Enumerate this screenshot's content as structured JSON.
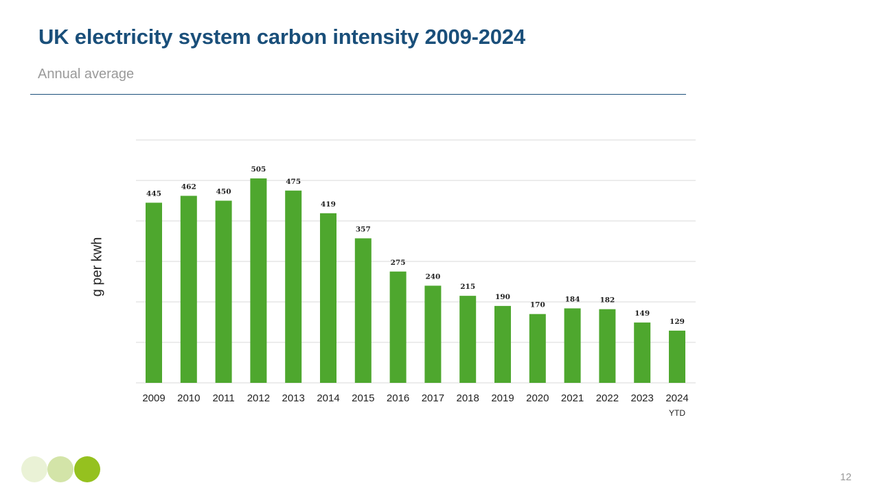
{
  "slide": {
    "title": "UK electricity system carbon intensity 2009-2024",
    "subtitle": "Annual average",
    "page_number": "12"
  },
  "colors": {
    "title": "#1a4f7a",
    "bar": "#4ea72e",
    "gridline": "#d9d9d9",
    "dot_1": "#eaf2d6",
    "dot_2": "#d3e4a8",
    "dot_3": "#95c11f"
  },
  "chart_data": {
    "type": "bar",
    "title": "UK electricity system carbon intensity 2009-2024",
    "subtitle": "Annual average",
    "ylabel": "g per kwh",
    "xlabel": "",
    "categories": [
      "2009",
      "2010",
      "2011",
      "2012",
      "2013",
      "2014",
      "2015",
      "2016",
      "2017",
      "2018",
      "2019",
      "2020",
      "2021",
      "2022",
      "2023",
      "2024"
    ],
    "category_sublabels": [
      "",
      "",
      "",
      "",
      "",
      "",
      "",
      "",
      "",
      "",
      "",
      "",
      "",
      "",
      "",
      "YTD"
    ],
    "values": [
      445,
      462,
      450,
      505,
      475,
      419,
      357,
      275,
      240,
      215,
      190,
      170,
      184,
      182,
      149,
      129
    ],
    "ylim": [
      0,
      600
    ],
    "y_gridlines": [
      0,
      100,
      200,
      300,
      400,
      500,
      600
    ],
    "grid": true,
    "y_tick_labels_shown": false,
    "legend": "none"
  }
}
